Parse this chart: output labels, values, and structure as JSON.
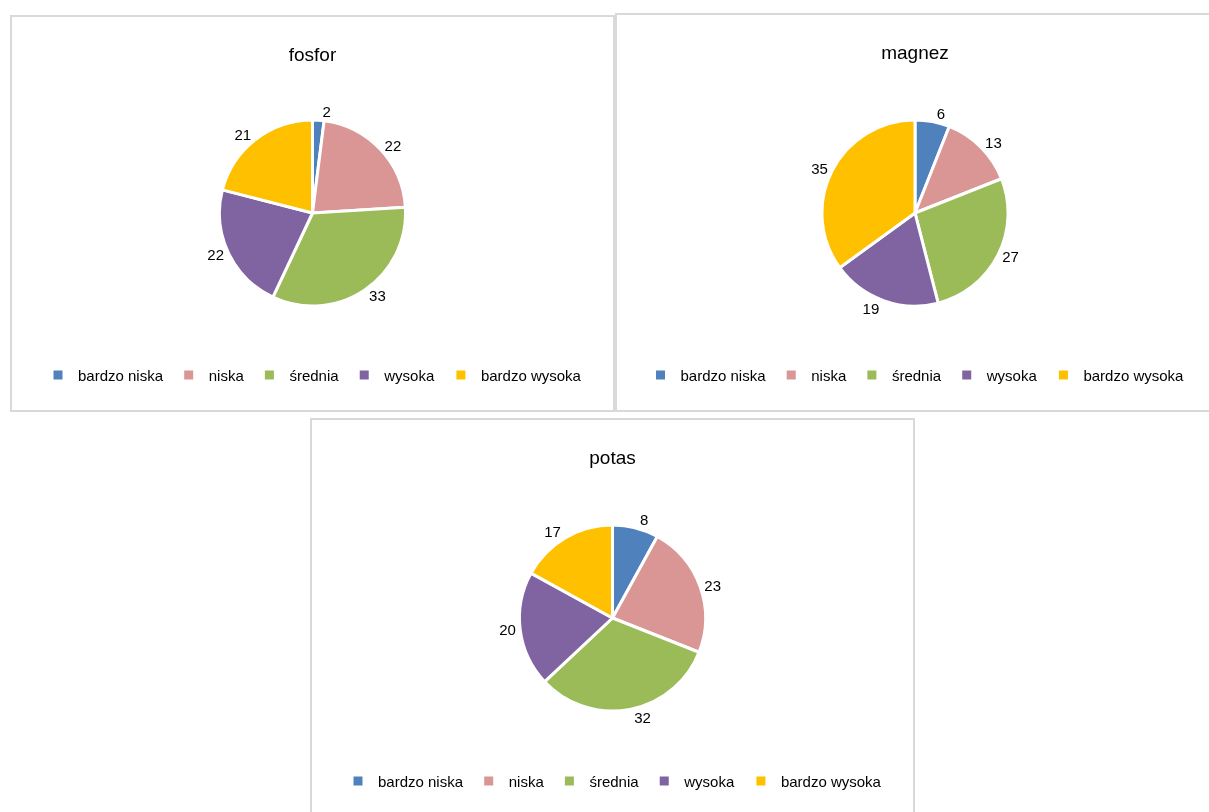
{
  "chart_data": [
    {
      "type": "pie",
      "title": "fosfor",
      "categories": [
        "bardzo niska",
        "niska",
        "średnia",
        "wysoka",
        "bardzo wysoka"
      ],
      "values": [
        2,
        22,
        33,
        22,
        21
      ],
      "colors": [
        "#4f81bd",
        "#d99694",
        "#9bbb59",
        "#8064a2",
        "#ffc000"
      ],
      "data_labels": true,
      "legend": "bottom"
    },
    {
      "type": "pie",
      "title": "magnez",
      "categories": [
        "bardzo niska",
        "niska",
        "średnia",
        "wysoka",
        "bardzo wysoka"
      ],
      "values": [
        6,
        13,
        27,
        19,
        35
      ],
      "colors": [
        "#4f81bd",
        "#d99694",
        "#9bbb59",
        "#8064a2",
        "#ffc000"
      ],
      "data_labels": true,
      "legend": "bottom"
    },
    {
      "type": "pie",
      "title": "potas",
      "categories": [
        "bardzo niska",
        "niska",
        "średnia",
        "wysoka",
        "bardzo wysoka"
      ],
      "values": [
        8,
        23,
        32,
        20,
        17
      ],
      "colors": [
        "#4f81bd",
        "#d99694",
        "#9bbb59",
        "#8064a2",
        "#ffc000"
      ],
      "data_labels": true,
      "legend": "bottom"
    }
  ]
}
